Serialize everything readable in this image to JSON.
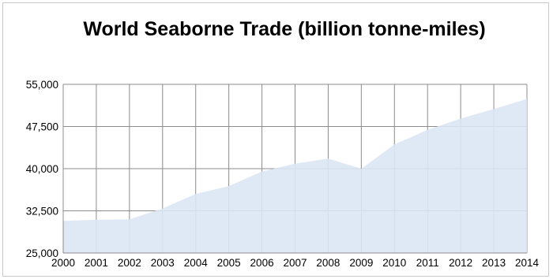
{
  "chart_data": {
    "type": "area",
    "title": "World Seaborne Trade (billion tonne-miles)",
    "xlabel": "",
    "ylabel": "",
    "x": [
      "2000",
      "2001",
      "2002",
      "2003",
      "2004",
      "2005",
      "2006",
      "2007",
      "2008",
      "2009",
      "2010",
      "2011",
      "2012",
      "2013",
      "2014"
    ],
    "series": [
      {
        "values": [
          30700,
          30900,
          31000,
          32900,
          35500,
          36900,
          39500,
          40900,
          41800,
          40000,
          44300,
          46900,
          48900,
          50600,
          52400
        ]
      }
    ],
    "ylim": [
      25000,
      55000
    ],
    "yticks": [
      "25,000",
      "32,500",
      "40,000",
      "47,500",
      "55,000"
    ],
    "grid": true,
    "legend": "none",
    "colors": {
      "fill": "#dce6f4",
      "grid": "#8c8c8c",
      "axis": "#8c8c8c"
    }
  }
}
